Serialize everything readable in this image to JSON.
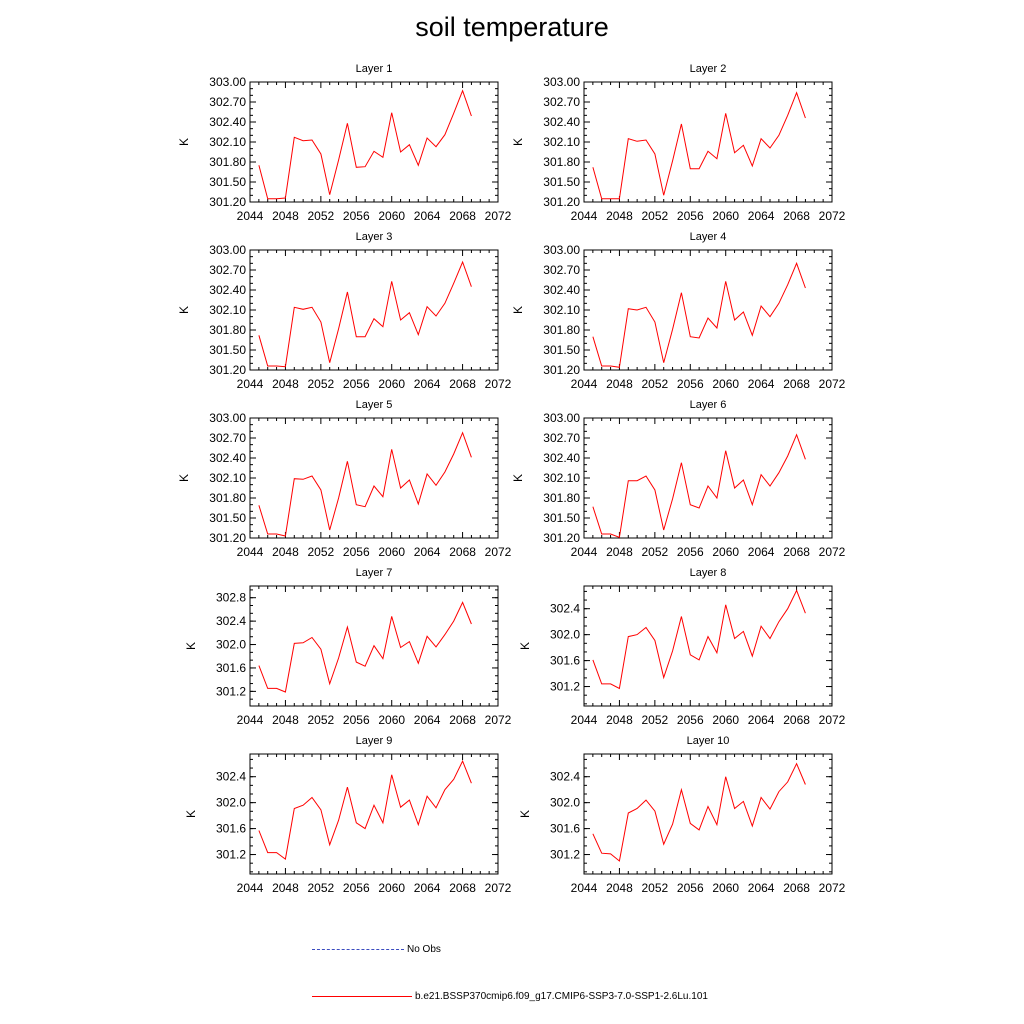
{
  "title": "soil temperature",
  "legend": [
    {
      "label": "No Obs",
      "color": "#3b4cc0",
      "style": "dashed"
    },
    {
      "label": "b.e21.BSSP370cmip6.f09_g17.CMIP6-SSP3-7.0-SSP1-2.6Lu.101",
      "color": "#ff0000",
      "style": "solid"
    }
  ],
  "chart_data": [
    {
      "type": "line",
      "title": "Layer 1",
      "ylabel": "K",
      "xlim": [
        2044,
        2072
      ],
      "ylim": [
        301.2,
        303.0
      ],
      "xticks": [
        "2044",
        "2048",
        "2052",
        "2056",
        "2060",
        "2064",
        "2068",
        "2072"
      ],
      "yticks": [
        "301.20",
        "301.50",
        "301.80",
        "302.10",
        "302.40",
        "302.70",
        "303.00"
      ],
      "x": [
        2045,
        2046,
        2047,
        2048,
        2049,
        2050,
        2051,
        2052,
        2053,
        2054,
        2055,
        2056,
        2057,
        2058,
        2059,
        2060,
        2061,
        2062,
        2063,
        2064,
        2065,
        2066,
        2067,
        2068,
        2069
      ],
      "series": [
        {
          "color": "#ff0000",
          "values": [
            301.75,
            301.25,
            301.25,
            301.26,
            302.17,
            302.12,
            302.13,
            301.92,
            301.31,
            301.83,
            302.38,
            301.72,
            301.73,
            301.96,
            301.87,
            302.54,
            301.95,
            302.06,
            301.75,
            302.16,
            302.03,
            302.21,
            302.53,
            302.87,
            302.49
          ]
        }
      ]
    },
    {
      "type": "line",
      "title": "Layer 2",
      "ylabel": "K",
      "xlim": [
        2044,
        2072
      ],
      "ylim": [
        301.2,
        303.0
      ],
      "xticks": [
        "2044",
        "2048",
        "2052",
        "2056",
        "2060",
        "2064",
        "2068",
        "2072"
      ],
      "yticks": [
        "301.20",
        "301.50",
        "301.80",
        "302.10",
        "302.40",
        "302.70",
        "303.00"
      ],
      "x": [
        2045,
        2046,
        2047,
        2048,
        2049,
        2050,
        2051,
        2052,
        2053,
        2054,
        2055,
        2056,
        2057,
        2058,
        2059,
        2060,
        2061,
        2062,
        2063,
        2064,
        2065,
        2066,
        2067,
        2068,
        2069
      ],
      "series": [
        {
          "color": "#ff0000",
          "values": [
            301.72,
            301.25,
            301.25,
            301.25,
            302.15,
            302.11,
            302.13,
            301.92,
            301.3,
            301.82,
            302.37,
            301.7,
            301.7,
            301.96,
            301.85,
            302.53,
            301.94,
            302.05,
            301.74,
            302.15,
            302.01,
            302.2,
            302.5,
            302.84,
            302.46
          ]
        }
      ]
    },
    {
      "type": "line",
      "title": "Layer 3",
      "ylabel": "K",
      "xlim": [
        2044,
        2072
      ],
      "ylim": [
        301.2,
        303.0
      ],
      "xticks": [
        "2044",
        "2048",
        "2052",
        "2056",
        "2060",
        "2064",
        "2068",
        "2072"
      ],
      "yticks": [
        "301.20",
        "301.50",
        "301.80",
        "302.10",
        "302.40",
        "302.70",
        "303.00"
      ],
      "x": [
        2045,
        2046,
        2047,
        2048,
        2049,
        2050,
        2051,
        2052,
        2053,
        2054,
        2055,
        2056,
        2057,
        2058,
        2059,
        2060,
        2061,
        2062,
        2063,
        2064,
        2065,
        2066,
        2067,
        2068,
        2069
      ],
      "series": [
        {
          "color": "#ff0000",
          "values": [
            301.72,
            301.26,
            301.26,
            301.25,
            302.14,
            302.11,
            302.14,
            301.92,
            301.31,
            301.82,
            302.37,
            301.7,
            301.7,
            301.97,
            301.85,
            302.53,
            301.95,
            302.06,
            301.73,
            302.15,
            302.01,
            302.2,
            302.5,
            302.82,
            302.45
          ]
        }
      ]
    },
    {
      "type": "line",
      "title": "Layer 4",
      "ylabel": "K",
      "xlim": [
        2044,
        2072
      ],
      "ylim": [
        301.2,
        303.0
      ],
      "xticks": [
        "2044",
        "2048",
        "2052",
        "2056",
        "2060",
        "2064",
        "2068",
        "2072"
      ],
      "yticks": [
        "301.20",
        "301.50",
        "301.80",
        "302.10",
        "302.40",
        "302.70",
        "303.00"
      ],
      "x": [
        2045,
        2046,
        2047,
        2048,
        2049,
        2050,
        2051,
        2052,
        2053,
        2054,
        2055,
        2056,
        2057,
        2058,
        2059,
        2060,
        2061,
        2062,
        2063,
        2064,
        2065,
        2066,
        2067,
        2068,
        2069
      ],
      "series": [
        {
          "color": "#ff0000",
          "values": [
            301.7,
            301.26,
            301.26,
            301.24,
            302.12,
            302.1,
            302.14,
            301.92,
            301.31,
            301.81,
            302.36,
            301.7,
            301.68,
            301.98,
            301.83,
            302.53,
            301.95,
            302.07,
            301.72,
            302.16,
            302.0,
            302.2,
            302.48,
            302.8,
            302.43
          ]
        }
      ]
    },
    {
      "type": "line",
      "title": "Layer 5",
      "ylabel": "K",
      "xlim": [
        2044,
        2072
      ],
      "ylim": [
        301.2,
        303.0
      ],
      "xticks": [
        "2044",
        "2048",
        "2052",
        "2056",
        "2060",
        "2064",
        "2068",
        "2072"
      ],
      "yticks": [
        "301.20",
        "301.50",
        "301.80",
        "302.10",
        "302.40",
        "302.70",
        "303.00"
      ],
      "x": [
        2045,
        2046,
        2047,
        2048,
        2049,
        2050,
        2051,
        2052,
        2053,
        2054,
        2055,
        2056,
        2057,
        2058,
        2059,
        2060,
        2061,
        2062,
        2063,
        2064,
        2065,
        2066,
        2067,
        2068,
        2069
      ],
      "series": [
        {
          "color": "#ff0000",
          "values": [
            301.69,
            301.26,
            301.26,
            301.23,
            302.09,
            302.08,
            302.13,
            301.92,
            301.32,
            301.8,
            302.35,
            301.7,
            301.67,
            301.98,
            301.82,
            302.53,
            301.95,
            302.07,
            301.71,
            302.16,
            301.99,
            302.19,
            302.46,
            302.78,
            302.41
          ]
        }
      ]
    },
    {
      "type": "line",
      "title": "Layer 6",
      "ylabel": "K",
      "xlim": [
        2044,
        2072
      ],
      "ylim": [
        301.2,
        303.0
      ],
      "xticks": [
        "2044",
        "2048",
        "2052",
        "2056",
        "2060",
        "2064",
        "2068",
        "2072"
      ],
      "yticks": [
        "301.20",
        "301.50",
        "301.80",
        "302.10",
        "302.40",
        "302.70",
        "303.00"
      ],
      "x": [
        2045,
        2046,
        2047,
        2048,
        2049,
        2050,
        2051,
        2052,
        2053,
        2054,
        2055,
        2056,
        2057,
        2058,
        2059,
        2060,
        2061,
        2062,
        2063,
        2064,
        2065,
        2066,
        2067,
        2068,
        2069
      ],
      "series": [
        {
          "color": "#ff0000",
          "values": [
            301.67,
            301.26,
            301.26,
            301.21,
            302.06,
            302.06,
            302.13,
            301.92,
            301.32,
            301.79,
            302.33,
            301.7,
            301.65,
            301.98,
            301.8,
            302.51,
            301.95,
            302.07,
            301.7,
            302.15,
            301.98,
            302.18,
            302.43,
            302.75,
            302.38
          ]
        }
      ]
    },
    {
      "type": "line",
      "title": "Layer 7",
      "ylabel": "K",
      "xlim": [
        2044,
        2072
      ],
      "ylim": [
        300.95,
        303.0
      ],
      "xticks": [
        "2044",
        "2048",
        "2052",
        "2056",
        "2060",
        "2064",
        "2068",
        "2072"
      ],
      "yticks": [
        "301.2",
        "301.6",
        "302.0",
        "302.4",
        "302.8"
      ],
      "x": [
        2045,
        2046,
        2047,
        2048,
        2049,
        2050,
        2051,
        2052,
        2053,
        2054,
        2055,
        2056,
        2057,
        2058,
        2059,
        2060,
        2061,
        2062,
        2063,
        2064,
        2065,
        2066,
        2067,
        2068,
        2069
      ],
      "series": [
        {
          "color": "#ff0000",
          "values": [
            301.64,
            301.25,
            301.25,
            301.19,
            302.02,
            302.03,
            302.12,
            301.92,
            301.33,
            301.77,
            302.3,
            301.7,
            301.63,
            301.98,
            301.76,
            302.48,
            301.95,
            302.05,
            301.68,
            302.14,
            301.96,
            302.17,
            302.4,
            302.72,
            302.35
          ]
        }
      ]
    },
    {
      "type": "line",
      "title": "Layer 8",
      "ylabel": "K",
      "xlim": [
        2044,
        2072
      ],
      "ylim": [
        300.9,
        302.75
      ],
      "xticks": [
        "2044",
        "2048",
        "2052",
        "2056",
        "2060",
        "2064",
        "2068",
        "2072"
      ],
      "yticks": [
        "301.2",
        "301.6",
        "302.0",
        "302.4"
      ],
      "x": [
        2045,
        2046,
        2047,
        2048,
        2049,
        2050,
        2051,
        2052,
        2053,
        2054,
        2055,
        2056,
        2057,
        2058,
        2059,
        2060,
        2061,
        2062,
        2063,
        2064,
        2065,
        2066,
        2067,
        2068,
        2069
      ],
      "series": [
        {
          "color": "#ff0000",
          "values": [
            301.61,
            301.24,
            301.24,
            301.17,
            301.97,
            302.0,
            302.11,
            301.91,
            301.34,
            301.75,
            302.28,
            301.69,
            301.61,
            301.97,
            301.72,
            302.46,
            301.94,
            302.05,
            301.67,
            302.13,
            301.94,
            302.2,
            302.4,
            302.68,
            302.33
          ]
        }
      ]
    },
    {
      "type": "line",
      "title": "Layer 9",
      "ylabel": "K",
      "xlim": [
        2044,
        2072
      ],
      "ylim": [
        300.9,
        302.75
      ],
      "xticks": [
        "2044",
        "2048",
        "2052",
        "2056",
        "2060",
        "2064",
        "2068",
        "2072"
      ],
      "yticks": [
        "301.2",
        "301.6",
        "302.0",
        "302.4"
      ],
      "x": [
        2045,
        2046,
        2047,
        2048,
        2049,
        2050,
        2051,
        2052,
        2053,
        2054,
        2055,
        2056,
        2057,
        2058,
        2059,
        2060,
        2061,
        2062,
        2063,
        2064,
        2065,
        2066,
        2067,
        2068,
        2069
      ],
      "series": [
        {
          "color": "#ff0000",
          "values": [
            301.57,
            301.23,
            301.23,
            301.13,
            301.91,
            301.96,
            302.08,
            301.89,
            301.35,
            301.73,
            302.24,
            301.69,
            301.6,
            301.96,
            301.69,
            302.43,
            301.93,
            302.04,
            301.66,
            302.1,
            301.92,
            302.2,
            302.36,
            302.64,
            302.3
          ]
        }
      ]
    },
    {
      "type": "line",
      "title": "Layer 10",
      "ylabel": "K",
      "xlim": [
        2044,
        2072
      ],
      "ylim": [
        300.9,
        302.75
      ],
      "xticks": [
        "2044",
        "2048",
        "2052",
        "2056",
        "2060",
        "2064",
        "2068",
        "2072"
      ],
      "yticks": [
        "301.2",
        "301.6",
        "302.0",
        "302.4"
      ],
      "x": [
        2045,
        2046,
        2047,
        2048,
        2049,
        2050,
        2051,
        2052,
        2053,
        2054,
        2055,
        2056,
        2057,
        2058,
        2059,
        2060,
        2061,
        2062,
        2063,
        2064,
        2065,
        2066,
        2067,
        2068,
        2069
      ],
      "series": [
        {
          "color": "#ff0000",
          "values": [
            301.52,
            301.22,
            301.21,
            301.1,
            301.84,
            301.91,
            302.04,
            301.87,
            301.36,
            301.67,
            302.2,
            301.68,
            301.58,
            301.94,
            301.66,
            302.4,
            301.91,
            302.02,
            301.64,
            302.08,
            301.9,
            302.17,
            302.32,
            302.6,
            302.28
          ]
        }
      ]
    }
  ]
}
